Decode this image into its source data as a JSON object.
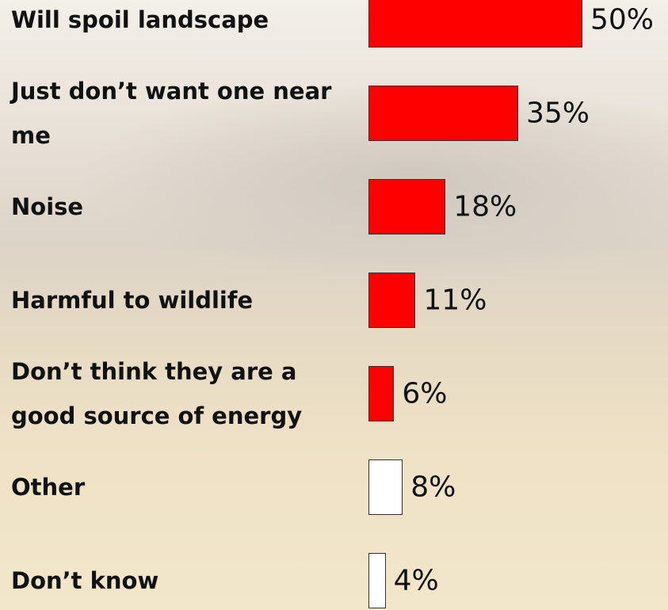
{
  "chart_data": {
    "type": "bar",
    "orientation": "horizontal",
    "categories": [
      "Will spoil landscape",
      "Just don’t want one near me",
      "Noise",
      "Harmful to wildlife",
      "Don’t think they are a good source of energy",
      "Other",
      "Don’t know"
    ],
    "values": [
      50,
      35,
      18,
      11,
      6,
      8,
      4
    ],
    "value_labels": [
      "50%",
      "35%",
      "18%",
      "11%",
      "6%",
      "8%",
      "4%"
    ],
    "colors": [
      "#ff0000",
      "#ff0000",
      "#ff0000",
      "#ff0000",
      "#ff0000",
      "#ffffff",
      "#ffffff"
    ]
  }
}
